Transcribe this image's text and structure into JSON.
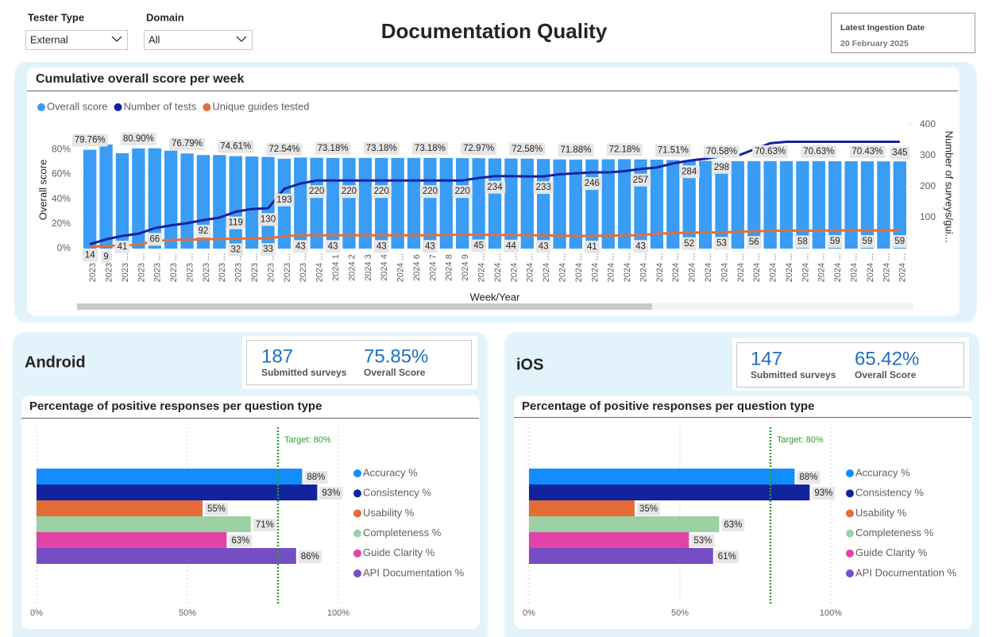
{
  "filters": [
    {
      "label": "Tester Type",
      "value": "External"
    },
    {
      "label": "Domain",
      "value": "All"
    }
  ],
  "title": "Documentation Quality",
  "ingestion": {
    "label": "Latest Ingestion Date",
    "value": "20 February 2025"
  },
  "panels": [
    {
      "name": "Android",
      "surveys": 187,
      "surveys_label": "Submitted surveys",
      "score": "75.85%",
      "score_label": "Overall Score"
    },
    {
      "name": "iOS",
      "surveys": 147,
      "surveys_label": "Submitted surveys",
      "score": "65.42%",
      "score_label": "Overall Score"
    }
  ],
  "chart_data": [
    {
      "type": "combo",
      "title": "Cumulative overall score per week",
      "x_label": "Week/Year",
      "y_label": "Overall score",
      "y2_label": "Number of surveys/gui...",
      "categories": [
        "2023 ...",
        "2023 ...",
        "2023 ...",
        "2023 ...",
        "2023 ...",
        "2023 ...",
        "2023 ...",
        "2023 ...",
        "2023 ...",
        "2023 ...",
        "2023 ...",
        "2023 ...",
        "2023 ...",
        "2023 ...",
        "2024 ...",
        "2024 1",
        "2024 2",
        "2024 3",
        "2024 4",
        "2024 ...",
        "2024 6",
        "2024 7",
        "2024 8",
        "2024 9",
        "2024 ...",
        "2024 ...",
        "2024 ...",
        "2024 ...",
        "2024 ...",
        "2024 ...",
        "2024 ...",
        "2024 ...",
        "2024 ...",
        "2024 ...",
        "2024 ...",
        "2024 ...",
        "2024 ...",
        "2024 ...",
        "2024 ...",
        "2024 ...",
        "2024 ...",
        "2024 ...",
        "2024 ...",
        "2024 ...",
        "2024 ...",
        "2024 ...",
        "2024 ...",
        "2024 ...",
        "2024 ...",
        "2024 ...",
        "2024 ..."
      ],
      "series": [
        {
          "name": "Overall score",
          "kind": "bar",
          "color": "#399cf5",
          "values": [
            79.76,
            84,
            77,
            80.9,
            81,
            79,
            76.79,
            75.5,
            75.5,
            74.61,
            74.3,
            74,
            72.54,
            73.5,
            73.3,
            73.18,
            73.2,
            73.2,
            73.18,
            73.2,
            73.2,
            73.18,
            73.1,
            73,
            72.97,
            72.8,
            72.7,
            72.58,
            72.3,
            72,
            71.88,
            72,
            72.1,
            72.18,
            72,
            71.8,
            71.51,
            71,
            70.8,
            70.58,
            70.6,
            70.6,
            70.63,
            70.6,
            70.6,
            70.63,
            70.5,
            70.5,
            70.43,
            70.4,
            70.4
          ],
          "value_labels": [
            "79.76%",
            null,
            null,
            "80.90%",
            null,
            null,
            "76.79%",
            null,
            null,
            "74.61%",
            null,
            null,
            "72.54%",
            null,
            null,
            "73.18%",
            null,
            null,
            "73.18%",
            null,
            null,
            "73.18%",
            null,
            null,
            "72.97%",
            null,
            null,
            "72.58%",
            null,
            null,
            "71.88%",
            null,
            null,
            "72.18%",
            null,
            null,
            "71.51%",
            null,
            null,
            "70.58%",
            null,
            null,
            "70.63%",
            null,
            null,
            "70.63%",
            null,
            null,
            "70.43%",
            null,
            null
          ]
        },
        {
          "name": "Number of tests",
          "kind": "line",
          "axis": "y2",
          "color": "#12239e",
          "values": [
            14,
            30,
            41,
            48,
            66,
            75,
            82,
            92,
            100,
            119,
            128,
            130,
            193,
            210,
            220,
            220,
            220,
            220,
            220,
            220,
            220,
            220,
            220,
            220,
            228,
            234,
            234,
            233,
            233,
            240,
            243,
            246,
            246,
            250,
            257,
            262,
            275,
            284,
            290,
            298,
            300,
            320,
            340,
            345,
            345,
            345,
            345,
            345,
            345,
            345,
            345
          ],
          "value_labels": [
            "14",
            null,
            "41",
            null,
            "66",
            null,
            null,
            "92",
            null,
            "119",
            null,
            "130",
            "193",
            null,
            "220",
            null,
            "220",
            null,
            "220",
            null,
            null,
            "220",
            null,
            "220",
            null,
            "234",
            null,
            null,
            "233",
            null,
            null,
            "246",
            null,
            null,
            "257",
            null,
            null,
            "284",
            null,
            "298",
            null,
            null,
            null,
            null,
            null,
            null,
            null,
            null,
            null,
            null,
            "345"
          ]
        },
        {
          "name": "Unique guides tested",
          "kind": "line",
          "axis": "y2",
          "color": "#e66c37",
          "values": [
            5,
            9,
            10,
            12,
            25,
            28,
            29,
            30,
            31,
            32,
            33,
            33,
            40,
            43,
            43,
            43,
            43,
            43,
            43,
            43,
            43,
            43,
            44,
            45,
            45,
            44,
            44,
            43,
            43,
            42,
            41,
            41,
            42,
            43,
            43,
            48,
            50,
            52,
            52,
            53,
            54,
            56,
            57,
            58,
            58,
            58,
            59,
            59,
            59,
            59,
            59
          ],
          "value_labels": [
            null,
            "9",
            null,
            null,
            null,
            null,
            null,
            null,
            null,
            "32",
            null,
            "33",
            null,
            "43",
            null,
            "43",
            null,
            null,
            "43",
            null,
            null,
            "43",
            null,
            null,
            "45",
            null,
            "44",
            null,
            "43",
            null,
            null,
            "41",
            null,
            null,
            "43",
            null,
            null,
            "52",
            null,
            "53",
            null,
            "56",
            null,
            null,
            "58",
            null,
            "59",
            null,
            "59",
            null,
            "59"
          ]
        }
      ],
      "ylim": [
        0,
        100
      ],
      "yticks": [
        {
          "value": 0,
          "label": "0%"
        },
        {
          "value": 20,
          "label": "20%"
        },
        {
          "value": 40,
          "label": "40%"
        },
        {
          "value": 60,
          "label": "60%"
        },
        {
          "value": 80,
          "label": "80%"
        }
      ],
      "y2lim": [
        0,
        400
      ],
      "y2ticks": [
        100,
        200,
        300,
        400
      ],
      "grid": true,
      "legend": "top-left"
    },
    {
      "type": "hbar",
      "title": "Percentage of positive responses per question type",
      "categories": [
        "Accuracy %",
        "Consistency %",
        "Usability %",
        "Completeness %",
        "Guide Clarity %",
        "API Documentation %"
      ],
      "values": [
        88,
        93,
        55,
        71,
        63,
        86
      ],
      "value_labels": [
        "88%",
        "93%",
        "55%",
        "71%",
        "63%",
        "86%"
      ],
      "colors": [
        "#118dff",
        "#12239e",
        "#e66c37",
        "#9bd1a4",
        "#e044a7",
        "#744ec2"
      ],
      "xlim": [
        0,
        100
      ],
      "xticks": [
        {
          "value": 0,
          "label": "0%"
        },
        {
          "value": 50,
          "label": "50%"
        },
        {
          "value": 100,
          "label": "100%"
        }
      ],
      "target": {
        "value": 80,
        "label": "Target: 80%",
        "color": "#2ca02c"
      },
      "grid": true,
      "legend": "right"
    },
    {
      "type": "hbar",
      "title": "Percentage of positive responses per question type",
      "categories": [
        "Accuracy %",
        "Consistency %",
        "Usability %",
        "Completeness %",
        "Guide Clarity %",
        "API Documentation %"
      ],
      "values": [
        88,
        93,
        35,
        63,
        53,
        61
      ],
      "value_labels": [
        "88%",
        "93%",
        "35%",
        "63%",
        "53%",
        "61%"
      ],
      "colors": [
        "#118dff",
        "#12239e",
        "#e66c37",
        "#9bd1a4",
        "#e044a7",
        "#744ec2"
      ],
      "xlim": [
        0,
        100
      ],
      "xticks": [
        {
          "value": 0,
          "label": "0%"
        },
        {
          "value": 50,
          "label": "50%"
        },
        {
          "value": 100,
          "label": "100%"
        }
      ],
      "target": {
        "value": 80,
        "label": "Target: 80%",
        "color": "#2ca02c"
      },
      "grid": true,
      "legend": "right"
    }
  ]
}
